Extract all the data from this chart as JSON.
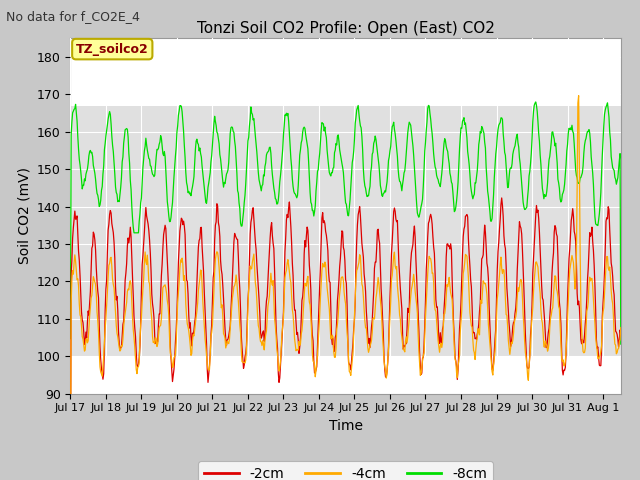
{
  "title": "Tonzi Soil CO2 Profile: Open (East) CO2",
  "subtitle": "No data for f_CO2E_4",
  "xlabel": "Time",
  "ylabel": "Soil CO2 (mV)",
  "ylim": [
    90,
    185
  ],
  "yticks": [
    90,
    100,
    110,
    120,
    130,
    140,
    150,
    160,
    170,
    180
  ],
  "xlim": [
    0,
    15.5
  ],
  "color_2cm": "#dd0000",
  "color_4cm": "#ffaa00",
  "color_8cm": "#00dd00",
  "fig_bg": "#c8c8c8",
  "plot_bg": "#ffffff",
  "shaded_bg": "#e0e0e0",
  "legend_box_fill": "#ffff99",
  "legend_box_edge": "#bbaa00",
  "xtick_labels": [
    "Jul 17",
    "Jul 18",
    "Jul 19",
    "Jul 20",
    "Jul 21",
    "Jul 22",
    "Jul 23",
    "Jul 24",
    "Jul 25",
    "Jul 26",
    "Jul 27",
    "Jul 28",
    "Jul 29",
    "Jul 30",
    "Jul 31",
    "Aug 1"
  ],
  "shaded_ymin": 100,
  "shaded_ymax": 167,
  "grid_color": "#cccccc",
  "spine_color": "#999999"
}
